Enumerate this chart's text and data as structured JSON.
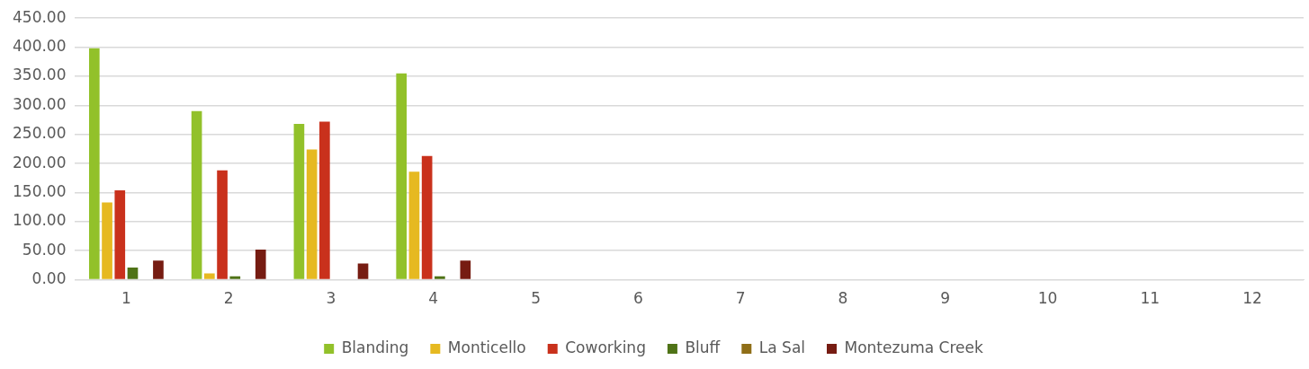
{
  "chart_data": {
    "type": "bar",
    "categories": [
      "1",
      "2",
      "3",
      "4",
      "5",
      "6",
      "7",
      "8",
      "9",
      "10",
      "11",
      "12"
    ],
    "series": [
      {
        "name": "Blanding",
        "color": "#92c12a",
        "values": [
          398,
          290,
          268,
          355,
          null,
          null,
          null,
          null,
          null,
          null,
          null,
          null
        ]
      },
      {
        "name": "Monticello",
        "color": "#e6b921",
        "values": [
          133,
          11,
          224,
          186,
          null,
          null,
          null,
          null,
          null,
          null,
          null,
          null
        ]
      },
      {
        "name": "Coworking",
        "color": "#c9311c",
        "values": [
          154,
          188,
          272,
          213,
          null,
          null,
          null,
          null,
          null,
          null,
          null,
          null
        ]
      },
      {
        "name": "Bluff",
        "color": "#4f7317",
        "values": [
          21,
          6,
          1.5,
          6,
          null,
          null,
          null,
          null,
          null,
          null,
          null,
          null
        ]
      },
      {
        "name": "La Sal",
        "color": "#8f6e17",
        "values": [
          0,
          0,
          0,
          0,
          null,
          null,
          null,
          null,
          null,
          null,
          null,
          null
        ]
      },
      {
        "name": "Montezuma Creek",
        "color": "#761c12",
        "values": [
          33,
          52,
          28,
          33,
          null,
          null,
          null,
          null,
          null,
          null,
          null,
          null
        ]
      }
    ],
    "ylim": [
      0,
      450
    ],
    "yticks": [
      {
        "value": 0,
        "label": "0.00"
      },
      {
        "value": 50,
        "label": "50.00"
      },
      {
        "value": 100,
        "label": "100.00"
      },
      {
        "value": 150,
        "label": "150.00"
      },
      {
        "value": 200,
        "label": "200.00"
      },
      {
        "value": 250,
        "label": "250.00"
      },
      {
        "value": 300,
        "label": "300.00"
      },
      {
        "value": 350,
        "label": "350.00"
      },
      {
        "value": 400,
        "label": "400.00"
      },
      {
        "value": 450,
        "label": "450.00"
      }
    ],
    "grid": "y",
    "legend": "bottom"
  }
}
